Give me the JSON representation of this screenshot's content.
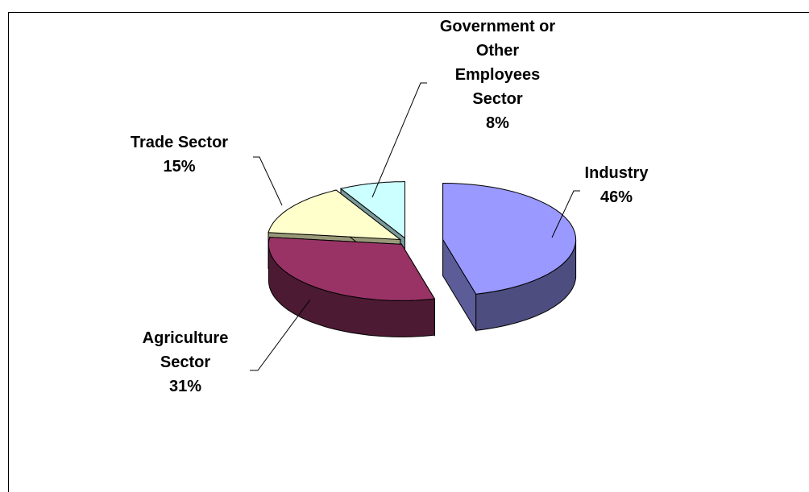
{
  "chart_data": {
    "type": "pie",
    "categories": [
      "Industry",
      "Agriculture Sector",
      "Trade Sector",
      "Government or Other Employees Sector"
    ],
    "values": [
      46,
      31,
      15,
      8
    ],
    "value_labels": [
      "46%",
      "31%",
      "15%",
      "8%"
    ],
    "colors": [
      "#9999ff",
      "#993366",
      "#ffffcc",
      "#ccffff"
    ]
  }
}
